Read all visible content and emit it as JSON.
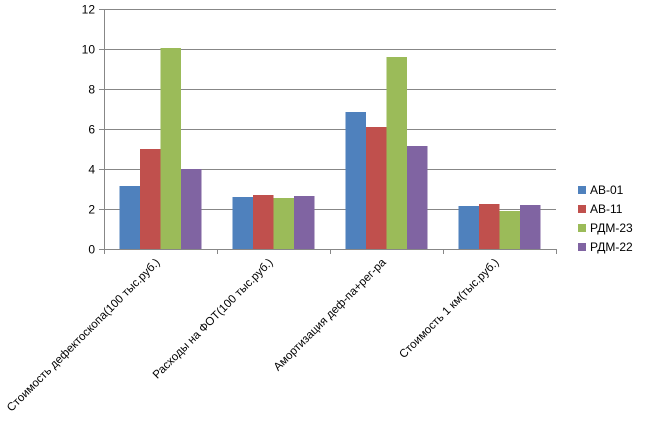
{
  "chart_data": {
    "type": "bar",
    "categories": [
      "Стоимость дефектоскопа(100 тыс.руб.)",
      "Расходы на ФОТ(100 тыс.руб.)",
      "Амортизация деф-па+рег-ра",
      "Стоимость 1 км(тыс.руб.)"
    ],
    "series": [
      {
        "name": "АВ-01",
        "color": "#4F81BD",
        "values": [
          3.15,
          2.6,
          6.85,
          2.15
        ]
      },
      {
        "name": "АВ-11",
        "color": "#C0504D",
        "values": [
          5.0,
          2.7,
          6.1,
          2.25
        ]
      },
      {
        "name": "РДМ-23",
        "color": "#9BBB59",
        "values": [
          10.05,
          2.55,
          9.6,
          1.9
        ]
      },
      {
        "name": "РДМ-22",
        "color": "#8064A2",
        "values": [
          4.0,
          2.65,
          5.15,
          2.2
        ]
      }
    ],
    "ylim": [
      0,
      12
    ],
    "yticks": [
      0,
      2,
      4,
      6,
      8,
      10,
      12
    ],
    "grid": true,
    "legend_position": "right"
  }
}
